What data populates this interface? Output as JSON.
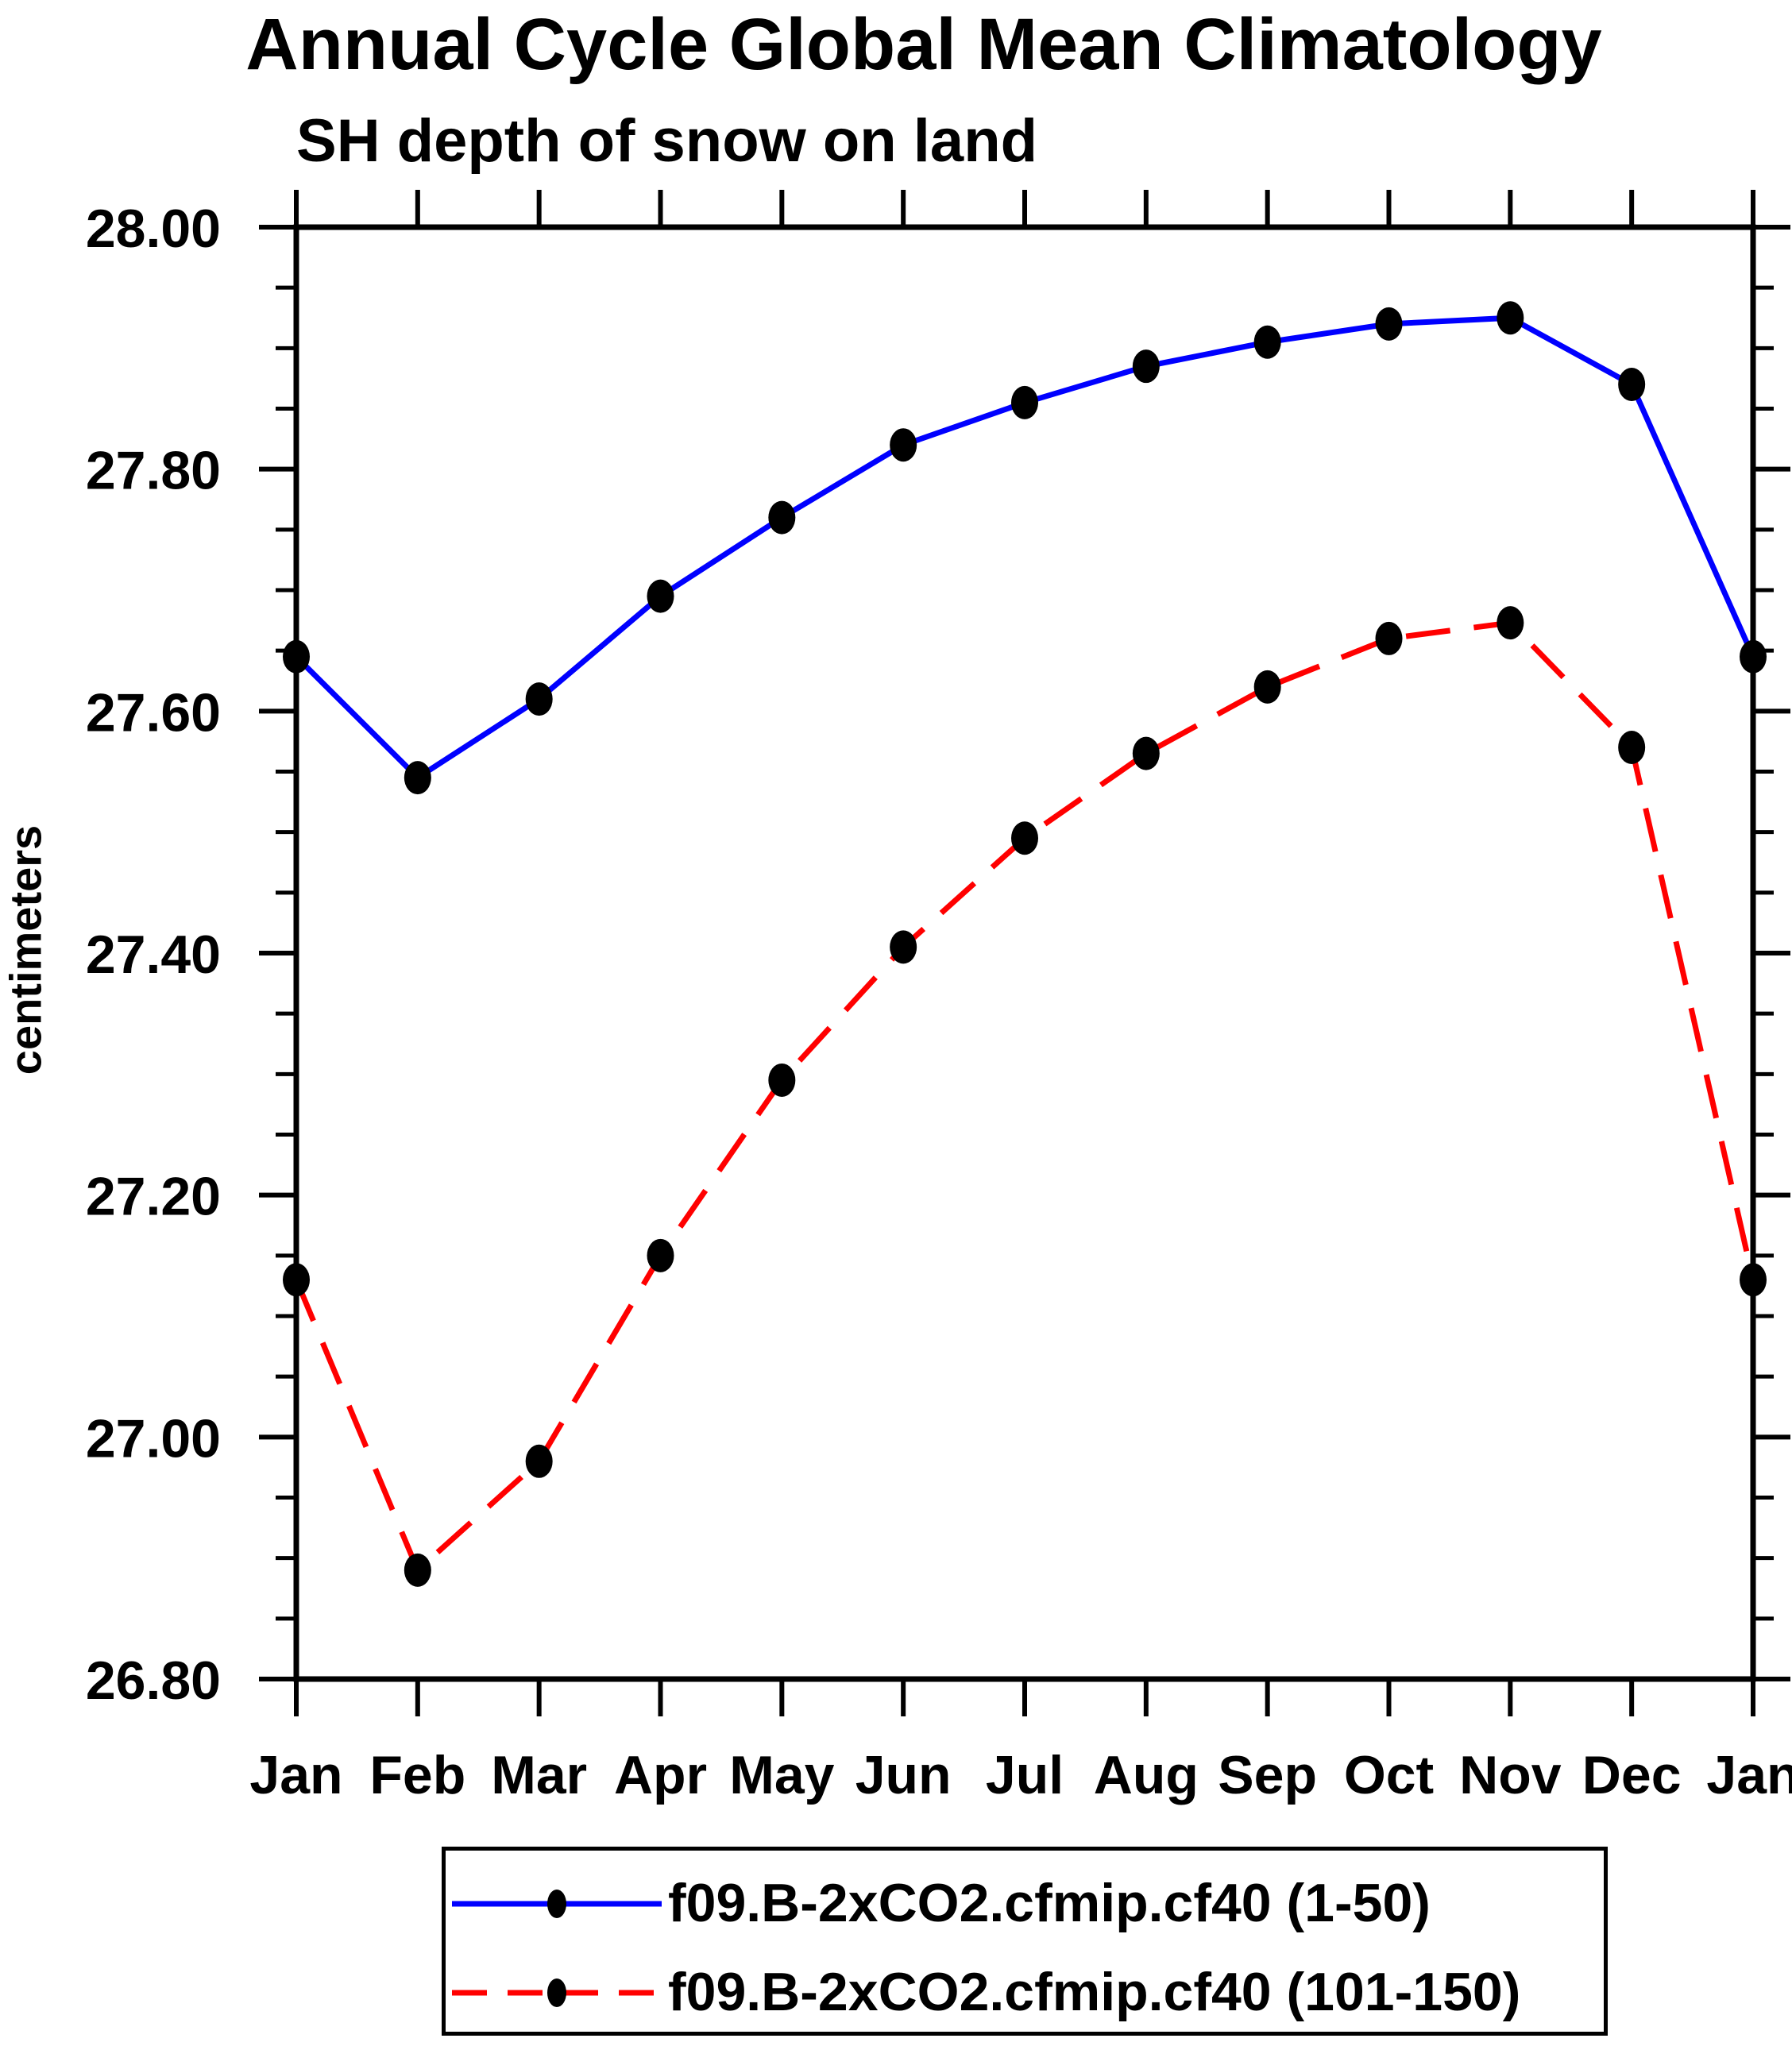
{
  "figure": {
    "title": "Annual Cycle Global Mean Climatology",
    "subtitle": "SH depth of snow on land",
    "y_axis_label": "centimeters"
  },
  "axes": {
    "y_tick_labels": [
      "28.00",
      "27.80",
      "27.60",
      "27.40",
      "27.20",
      "27.00",
      "26.80"
    ],
    "y_min": 26.8,
    "y_max": 28.0,
    "y_major_step": 0.2,
    "y_minor_step": 0.05,
    "x_tick_labels": [
      "Jan",
      "Feb",
      "Mar",
      "Apr",
      "May",
      "Jun",
      "Jul",
      "Aug",
      "Sep",
      "Oct",
      "Nov",
      "Dec",
      "Jan"
    ]
  },
  "legend": {
    "entries": [
      {
        "label": "f09.B-2xCO2.cfmip.cf40 (1-50)",
        "color": "#0000ff",
        "line_style": "solid",
        "marker": "filled-dot",
        "marker_color": "#000000"
      },
      {
        "label": "f09.B-2xCO2.cfmip.cf40 (101-150)",
        "color": "#ff0000",
        "line_style": "dashed",
        "marker": "filled-dot",
        "marker_color": "#000000"
      }
    ],
    "position": "bottom"
  },
  "colors": {
    "series_1": "#0000ff",
    "series_2": "#ff0000",
    "marker": "#000000",
    "axis": "#000000",
    "background": "#ffffff"
  },
  "chart_data": {
    "type": "line",
    "title": "Annual Cycle Global Mean Climatology",
    "subtitle": "SH depth of snow on land",
    "ylabel": "centimeters",
    "xlabel": "",
    "categories": [
      "Jan",
      "Feb",
      "Mar",
      "Apr",
      "May",
      "Jun",
      "Jul",
      "Aug",
      "Sep",
      "Oct",
      "Nov",
      "Dec",
      "Jan"
    ],
    "ylim": [
      26.8,
      28.0
    ],
    "y_major_step": 0.2,
    "y_minor_step": 0.05,
    "grid": false,
    "legend_position": "bottom",
    "series": [
      {
        "name": "f09.B-2xCO2.cfmip.cf40 (1-50)",
        "color": "#0000ff",
        "line_style": "solid",
        "marker": "filled-circle",
        "marker_color": "#000000",
        "values": [
          27.645,
          27.545,
          27.61,
          27.695,
          27.76,
          27.82,
          27.855,
          27.885,
          27.905,
          27.92,
          27.925,
          27.87,
          27.645
        ]
      },
      {
        "name": "f09.B-2xCO2.cfmip.cf40 (101-150)",
        "color": "#ff0000",
        "line_style": "dashed",
        "marker": "filled-circle",
        "marker_color": "#000000",
        "values": [
          27.13,
          26.89,
          26.98,
          27.15,
          27.295,
          27.405,
          27.495,
          27.565,
          27.62,
          27.66,
          27.673,
          27.57,
          27.13
        ]
      }
    ]
  }
}
